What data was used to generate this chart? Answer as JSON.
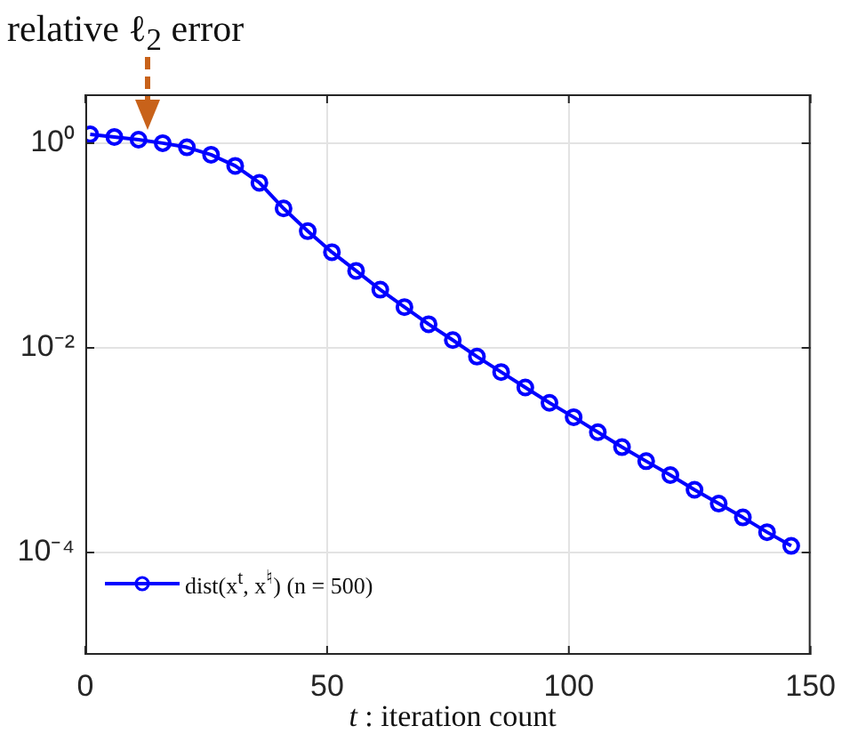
{
  "chart_data": {
    "type": "line",
    "title": "relative ℓ$_{2}$ error",
    "xlabel": "t : iteration count",
    "x": [
      1,
      6,
      11,
      16,
      21,
      26,
      31,
      36,
      41,
      46,
      51,
      56,
      61,
      66,
      71,
      76,
      81,
      86,
      91,
      96,
      101,
      106,
      111,
      116,
      121,
      126,
      131,
      136,
      141,
      146
    ],
    "series": [
      {
        "name": "dist(x$^{t}$, x$^{♮}$) (n = 500)",
        "color": "#0000ff",
        "values": [
          1.22,
          1.15,
          1.08,
          1.0,
          0.91,
          0.77,
          0.6,
          0.41,
          0.23,
          0.138,
          0.086,
          0.0565,
          0.037,
          0.025,
          0.017,
          0.0119,
          0.0082,
          0.0058,
          0.0041,
          0.0029,
          0.0021,
          0.0015,
          0.00107,
          0.00078,
          0.00057,
          0.00041,
          0.0003,
          0.00022,
          0.000158,
          0.000116
        ]
      }
    ],
    "xlim": [
      0,
      150
    ],
    "xticks": [
      0,
      50,
      100,
      150
    ],
    "ylim": [
      1e-05,
      3
    ],
    "yticks": [
      {
        "value": 1,
        "label": "10⁰"
      },
      {
        "value": 0.01,
        "label": "10⁻²"
      },
      {
        "value": 0.0001,
        "label": "10⁻⁴"
      }
    ],
    "log": "y",
    "grid": true,
    "legend": "bottom left",
    "marker": "circle",
    "line_style": "solid"
  }
}
